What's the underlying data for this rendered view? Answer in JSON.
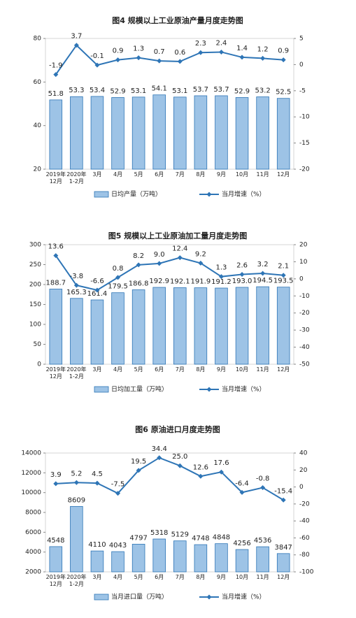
{
  "chart_data": [
    {
      "type": "combo",
      "title": "图4  规模以上工业原油产量月度走势图",
      "categories": [
        "2019年\n12月",
        "2020年\n1-2月",
        "3月",
        "4月",
        "5月",
        "6月",
        "7月",
        "8月",
        "9月",
        "10月",
        "11月",
        "12月"
      ],
      "series": [
        {
          "name": "日均产量（万吨）",
          "type": "bar",
          "color": "#9dc3e6",
          "values": [
            51.8,
            53.3,
            53.4,
            52.9,
            53.1,
            54.1,
            53.1,
            53.7,
            53.7,
            52.9,
            53.2,
            52.5
          ]
        },
        {
          "name": "当月增速（%）",
          "type": "line",
          "axis": "y2",
          "color": "#2e75b6",
          "values": [
            -1.9,
            3.7,
            -0.1,
            0.9,
            1.3,
            0.7,
            0.6,
            2.3,
            2.4,
            1.4,
            1.2,
            0.9
          ]
        }
      ],
      "ylim": [
        20,
        80
      ],
      "yticks": [
        20,
        40,
        60,
        80
      ],
      "y2lim": [
        -20,
        5
      ],
      "y2ticks": [
        -20,
        -15,
        -10,
        -5,
        0,
        5
      ]
    },
    {
      "type": "combo",
      "title": "图5  规模以上工业原油加工量月度走势图",
      "categories": [
        "2019年\n12月",
        "2020年\n1-2月",
        "3月",
        "4月",
        "5月",
        "6月",
        "7月",
        "8月",
        "9月",
        "10月",
        "11月",
        "12月"
      ],
      "series": [
        {
          "name": "日均加工量（万吨）",
          "type": "bar",
          "color": "#9dc3e6",
          "values": [
            188.7,
            165.3,
            161.4,
            179.5,
            186.8,
            192.9,
            192.1,
            191.9,
            191.2,
            193.0,
            194.5,
            193.5
          ],
          "value_labels": [
            "188.7",
            "165.3",
            "161.4",
            "179.5",
            "186.8",
            "192.9",
            "192.1",
            "191.9",
            "191.2",
            "193.0",
            "194.5",
            "193.5"
          ]
        },
        {
          "name": "当月增速（%）",
          "type": "line",
          "axis": "y2",
          "color": "#2e75b6",
          "values": [
            13.6,
            -3.8,
            -6.6,
            0.8,
            8.2,
            9.0,
            12.4,
            9.2,
            1.3,
            2.6,
            3.2,
            2.1
          ],
          "value_labels": [
            "13.6",
            "-3.8",
            "-6.6",
            "0.8",
            "8.2",
            "9.0",
            "12.4",
            "9.2",
            "1.3",
            "2.6",
            "3.2",
            "2.1"
          ]
        }
      ],
      "ylim": [
        0,
        300
      ],
      "yticks": [
        0,
        50,
        100,
        150,
        200,
        250,
        300
      ],
      "y2lim": [
        -50,
        20
      ],
      "y2ticks": [
        -50,
        -40,
        -30,
        -20,
        -10,
        0,
        10,
        20
      ]
    },
    {
      "type": "combo",
      "title": "图6  原油进口月度走势图",
      "categories": [
        "2019年\n12月",
        "2020年\n1-2月",
        "3月",
        "4月",
        "5月",
        "6月",
        "7月",
        "8月",
        "9月",
        "10月",
        "11月",
        "12月"
      ],
      "series": [
        {
          "name": "当月进口量（万吨）",
          "type": "bar",
          "color": "#9dc3e6",
          "values": [
            4548,
            8609,
            4110,
            4043,
            4797,
            5318,
            5129,
            4748,
            4848,
            4256,
            4536,
            3847
          ]
        },
        {
          "name": "当月增速（%）",
          "type": "line",
          "axis": "y2",
          "color": "#2e75b6",
          "values": [
            3.9,
            5.2,
            4.5,
            -7.5,
            19.5,
            34.4,
            25.0,
            12.6,
            17.6,
            -6.4,
            -0.8,
            -15.4
          ],
          "value_labels": [
            "3.9",
            "5.2",
            "4.5",
            "-7.5",
            "19.5",
            "34.4",
            "25.0",
            "12.6",
            "17.6",
            "-6.4",
            "-0.8",
            "-15.4"
          ]
        }
      ],
      "ylim": [
        2000,
        14000
      ],
      "yticks": [
        2000,
        4000,
        6000,
        8000,
        10000,
        12000,
        14000
      ],
      "y2lim": [
        -100,
        40
      ],
      "y2ticks": [
        -100,
        -80,
        -60,
        -40,
        -20,
        0,
        20,
        40
      ]
    }
  ]
}
